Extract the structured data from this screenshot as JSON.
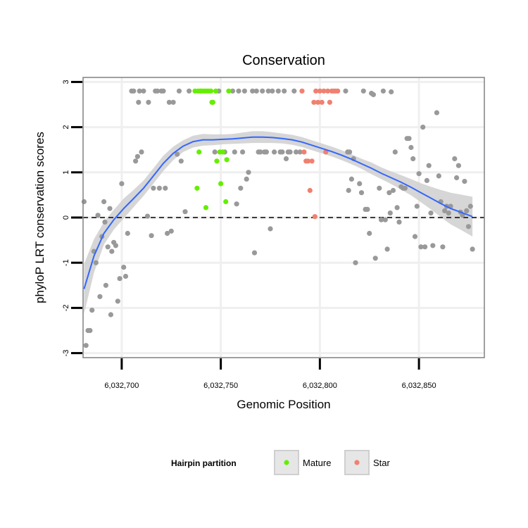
{
  "chart_data": {
    "type": "scatter",
    "title": "Conservation",
    "xlabel": "Genomic Position",
    "ylabel": "phyloP LRT conservation scores",
    "xlim": [
      6032680.5,
      6032883
    ],
    "ylim": [
      -3.1,
      3.1
    ],
    "x_ticks": [
      {
        "value": 6032700,
        "label": "6,032,700"
      },
      {
        "value": 6032750,
        "label": "6,032,750"
      },
      {
        "value": 6032800,
        "label": "6,032,800"
      },
      {
        "value": 6032850,
        "label": "6,032,850"
      }
    ],
    "y_ticks": [
      {
        "value": -3,
        "label": "-3"
      },
      {
        "value": -2,
        "label": "-2"
      },
      {
        "value": -1,
        "label": "-1"
      },
      {
        "value": 0,
        "label": "0"
      },
      {
        "value": 1,
        "label": "1"
      },
      {
        "value": 2,
        "label": "2"
      },
      {
        "value": 3,
        "label": "3"
      }
    ],
    "grid": true,
    "reference_line": {
      "y": 0,
      "style": "dashed",
      "color": "#000000"
    },
    "legend": {
      "title": "Hairpin partition",
      "position": "bottom",
      "entries": [
        {
          "label": "Mature",
          "color": "#66ee00"
        },
        {
          "label": "Star",
          "color": "#f08070"
        }
      ]
    },
    "colors": {
      "other": "#999999",
      "mature": "#66ee00",
      "star": "#f08070",
      "smooth": "#3366ff",
      "band": "#cfcfcf",
      "grid": "#efefef",
      "panel_border": "#808080"
    },
    "series": [
      {
        "key": "other",
        "points": [
          [
            6032681,
            0.35
          ],
          [
            6032682,
            -2.83
          ],
          [
            6032683,
            -2.5
          ],
          [
            6032684,
            -2.5
          ],
          [
            6032685,
            -2.05
          ],
          [
            6032686,
            -0.75
          ],
          [
            6032687,
            -1.0
          ],
          [
            6032688,
            0.05
          ],
          [
            6032689,
            -1.75
          ],
          [
            6032690,
            -0.42
          ],
          [
            6032691,
            0.35
          ],
          [
            6032691.5,
            -0.1
          ],
          [
            6032692,
            -1.5
          ],
          [
            6032693,
            -0.65
          ],
          [
            6032694,
            0.2
          ],
          [
            6032694.5,
            -2.15
          ],
          [
            6032695,
            -0.75
          ],
          [
            6032696,
            -0.55
          ],
          [
            6032697,
            -0.62
          ],
          [
            6032698,
            -1.85
          ],
          [
            6032699,
            -1.35
          ],
          [
            6032700,
            0.75
          ],
          [
            6032701,
            -1.1
          ],
          [
            6032702,
            -1.3
          ],
          [
            6032703,
            -0.35
          ],
          [
            6032705,
            2.8
          ],
          [
            6032706,
            2.8
          ],
          [
            6032707,
            1.25
          ],
          [
            6032708,
            1.35
          ],
          [
            6032708.5,
            2.55
          ],
          [
            6032709,
            2.8
          ],
          [
            6032710,
            1.45
          ],
          [
            6032711,
            2.8
          ],
          [
            6032713,
            0.03
          ],
          [
            6032713.5,
            2.55
          ],
          [
            6032715,
            -0.4
          ],
          [
            6032716,
            0.65
          ],
          [
            6032717,
            2.8
          ],
          [
            6032718,
            2.8
          ],
          [
            6032719,
            0.65
          ],
          [
            6032720,
            2.8
          ],
          [
            6032721,
            2.8
          ],
          [
            6032722,
            0.65
          ],
          [
            6032723,
            -0.35
          ],
          [
            6032724,
            2.55
          ],
          [
            6032725,
            -0.3
          ],
          [
            6032726,
            2.55
          ],
          [
            6032728,
            1.4
          ],
          [
            6032729,
            2.8
          ],
          [
            6032730,
            1.25
          ],
          [
            6032732,
            0.13
          ],
          [
            6032734,
            2.8
          ],
          [
            6032747,
            1.45
          ],
          [
            6032749,
            2.8
          ],
          [
            6032752,
            1.45
          ],
          [
            6032756,
            2.8
          ],
          [
            6032757,
            1.45
          ],
          [
            6032758,
            0.3
          ],
          [
            6032759,
            2.8
          ],
          [
            6032760,
            0.65
          ],
          [
            6032761,
            1.45
          ],
          [
            6032762,
            2.8
          ],
          [
            6032763,
            0.85
          ],
          [
            6032764,
            1.0
          ],
          [
            6032766,
            2.8
          ],
          [
            6032767,
            -0.78
          ],
          [
            6032768,
            2.8
          ],
          [
            6032769,
            1.45
          ],
          [
            6032770,
            1.45
          ],
          [
            6032771,
            2.8
          ],
          [
            6032772,
            1.45
          ],
          [
            6032773,
            1.45
          ],
          [
            6032774,
            2.8
          ],
          [
            6032775,
            -0.25
          ],
          [
            6032776,
            2.8
          ],
          [
            6032777,
            1.45
          ],
          [
            6032779,
            2.8
          ],
          [
            6032780,
            1.45
          ],
          [
            6032781,
            1.45
          ],
          [
            6032782,
            2.8
          ],
          [
            6032783,
            1.3
          ],
          [
            6032784,
            1.45
          ],
          [
            6032785,
            1.45
          ],
          [
            6032787,
            2.8
          ],
          [
            6032788,
            1.45
          ],
          [
            6032790,
            1.45
          ],
          [
            6032813,
            2.8
          ],
          [
            6032814,
            1.45
          ],
          [
            6032814.5,
            0.6
          ],
          [
            6032815,
            1.45
          ],
          [
            6032816,
            0.85
          ],
          [
            6032817,
            1.3
          ],
          [
            6032818,
            -1.0
          ],
          [
            6032820,
            0.75
          ],
          [
            6032821,
            0.55
          ],
          [
            6032822,
            2.8
          ],
          [
            6032823,
            0.18
          ],
          [
            6032824,
            0.18
          ],
          [
            6032825,
            -0.35
          ],
          [
            6032826,
            2.75
          ],
          [
            6032827,
            2.72
          ],
          [
            6032828,
            -0.9
          ],
          [
            6032830,
            0.65
          ],
          [
            6032831,
            -0.05
          ],
          [
            6032832,
            2.8
          ],
          [
            6032833,
            -0.05
          ],
          [
            6032834,
            -0.7
          ],
          [
            6032835,
            0.55
          ],
          [
            6032835.5,
            0.1
          ],
          [
            6032836,
            2.78
          ],
          [
            6032837,
            0.6
          ],
          [
            6032838,
            1.45
          ],
          [
            6032839,
            0.22
          ],
          [
            6032840,
            -0.1
          ],
          [
            6032841,
            0.68
          ],
          [
            6032842,
            0.65
          ],
          [
            6032843,
            0.65
          ],
          [
            6032844,
            1.75
          ],
          [
            6032845,
            1.75
          ],
          [
            6032846,
            1.55
          ],
          [
            6032847,
            1.3
          ],
          [
            6032848,
            -0.42
          ],
          [
            6032849,
            0.25
          ],
          [
            6032850,
            0.97
          ],
          [
            6032851,
            -0.65
          ],
          [
            6032852,
            2.0
          ],
          [
            6032853,
            -0.65
          ],
          [
            6032854,
            0.82
          ],
          [
            6032855,
            1.15
          ],
          [
            6032856,
            0.1
          ],
          [
            6032857,
            -0.62
          ],
          [
            6032859,
            2.32
          ],
          [
            6032860,
            0.92
          ],
          [
            6032861,
            0.35
          ],
          [
            6032862,
            -0.65
          ],
          [
            6032863,
            0.15
          ],
          [
            6032864,
            0.25
          ],
          [
            6032865,
            0.1
          ],
          [
            6032866,
            0.25
          ],
          [
            6032868,
            1.3
          ],
          [
            6032869,
            0.88
          ],
          [
            6032870,
            1.15
          ],
          [
            6032871,
            0.12
          ],
          [
            6032872,
            0.05
          ],
          [
            6032873,
            0.8
          ],
          [
            6032874,
            0.15
          ],
          [
            6032875,
            -0.2
          ],
          [
            6032876,
            0.25
          ],
          [
            6032877,
            -0.7
          ]
        ]
      },
      {
        "key": "mature",
        "name": "Mature",
        "points": [
          [
            6032737,
            2.8
          ],
          [
            6032738,
            0.65
          ],
          [
            6032738.5,
            2.8
          ],
          [
            6032739,
            1.45
          ],
          [
            6032739.5,
            2.8
          ],
          [
            6032740,
            2.8
          ],
          [
            6032741,
            2.8
          ],
          [
            6032742,
            2.8
          ],
          [
            6032742.5,
            0.22
          ],
          [
            6032743,
            2.8
          ],
          [
            6032744,
            2.8
          ],
          [
            6032745,
            2.8
          ],
          [
            6032745.5,
            2.55
          ],
          [
            6032746,
            2.55
          ],
          [
            6032747.5,
            2.8
          ],
          [
            6032748,
            1.25
          ],
          [
            6032749.5,
            1.45
          ],
          [
            6032750,
            0.75
          ],
          [
            6032751,
            1.45
          ],
          [
            6032752.5,
            0.35
          ],
          [
            6032753,
            1.28
          ],
          [
            6032754,
            2.8
          ]
        ]
      },
      {
        "key": "star",
        "name": "Star",
        "points": [
          [
            6032791,
            2.8
          ],
          [
            6032792,
            1.45
          ],
          [
            6032793,
            1.25
          ],
          [
            6032794,
            1.25
          ],
          [
            6032795,
            0.6
          ],
          [
            6032796,
            1.25
          ],
          [
            6032797,
            2.55
          ],
          [
            6032797.5,
            0.02
          ],
          [
            6032798,
            2.8
          ],
          [
            6032799,
            2.55
          ],
          [
            6032800,
            2.8
          ],
          [
            6032801,
            2.55
          ],
          [
            6032802,
            2.8
          ],
          [
            6032803,
            1.45
          ],
          [
            6032804,
            2.8
          ],
          [
            6032805,
            2.55
          ],
          [
            6032806,
            2.8
          ],
          [
            6032807,
            2.8
          ],
          [
            6032808,
            2.8
          ],
          [
            6032809,
            2.8
          ]
        ]
      }
    ],
    "smooth": {
      "x": [
        6032681,
        6032686,
        6032691,
        6032696,
        6032701,
        6032706,
        6032711,
        6032716,
        6032721,
        6032726,
        6032731,
        6032736,
        6032741,
        6032746,
        6032751,
        6032756,
        6032761,
        6032766,
        6032771,
        6032776,
        6032781,
        6032786,
        6032791,
        6032796,
        6032801,
        6032806,
        6032811,
        6032816,
        6032821,
        6032826,
        6032831,
        6032836,
        6032841,
        6032846,
        6032851,
        6032856,
        6032861,
        6032866,
        6032871,
        6032877
      ],
      "y": [
        -1.58,
        -0.85,
        -0.35,
        -0.05,
        0.2,
        0.42,
        0.65,
        0.92,
        1.2,
        1.42,
        1.58,
        1.68,
        1.72,
        1.72,
        1.73,
        1.74,
        1.76,
        1.78,
        1.78,
        1.77,
        1.75,
        1.72,
        1.67,
        1.6,
        1.53,
        1.46,
        1.38,
        1.29,
        1.19,
        1.09,
        0.98,
        0.88,
        0.78,
        0.67,
        0.55,
        0.43,
        0.31,
        0.2,
        0.12,
        0.02
      ],
      "lower": [
        -2.13,
        -1.22,
        -0.6,
        -0.27,
        -0.02,
        0.23,
        0.48,
        0.75,
        1.03,
        1.27,
        1.45,
        1.55,
        1.59,
        1.6,
        1.62,
        1.63,
        1.64,
        1.65,
        1.65,
        1.65,
        1.64,
        1.61,
        1.56,
        1.49,
        1.42,
        1.35,
        1.27,
        1.18,
        1.08,
        0.96,
        0.85,
        0.74,
        0.62,
        0.49,
        0.34,
        0.18,
        0.01,
        -0.15,
        -0.27,
        -0.42
      ],
      "upper": [
        -1.03,
        -0.48,
        -0.1,
        0.17,
        0.42,
        0.61,
        0.82,
        1.09,
        1.37,
        1.57,
        1.71,
        1.81,
        1.85,
        1.84,
        1.84,
        1.85,
        1.88,
        1.91,
        1.91,
        1.89,
        1.86,
        1.83,
        1.78,
        1.71,
        1.64,
        1.57,
        1.49,
        1.4,
        1.3,
        1.22,
        1.11,
        1.02,
        0.94,
        0.85,
        0.76,
        0.68,
        0.61,
        0.55,
        0.51,
        0.46
      ]
    }
  }
}
